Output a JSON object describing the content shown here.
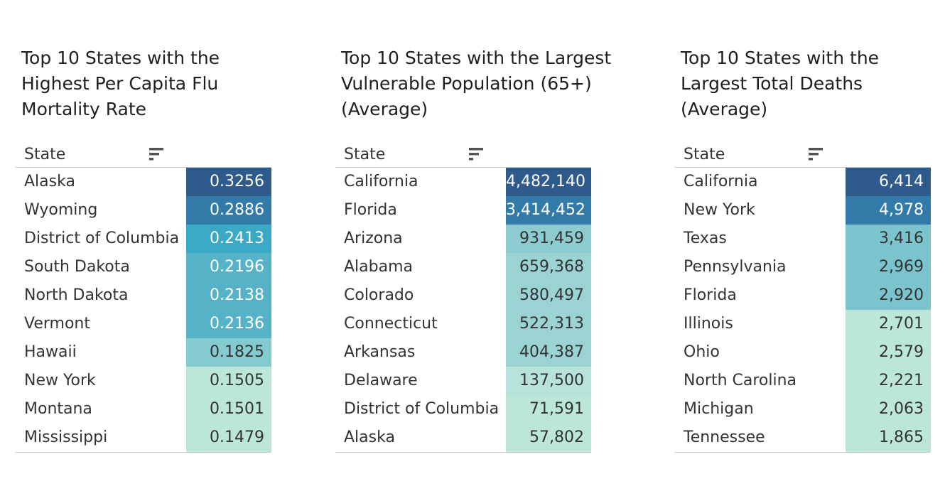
{
  "chart_data": [
    {
      "type": "table",
      "title": "Top 10 States with the\nHighest Per Capita Flu\nMortality Rate",
      "column_header": "State",
      "value_decimals": 4,
      "rows": [
        {
          "state": "Alaska",
          "value": 0.3256
        },
        {
          "state": "Wyoming",
          "value": 0.2886
        },
        {
          "state": "District of Columbia",
          "value": 0.2413
        },
        {
          "state": "South Dakota",
          "value": 0.2196
        },
        {
          "state": "North Dakota",
          "value": 0.2138
        },
        {
          "state": "Vermont",
          "value": 0.2136
        },
        {
          "state": "Hawaii",
          "value": 0.1825
        },
        {
          "state": "New York",
          "value": 0.1505
        },
        {
          "state": "Montana",
          "value": 0.1501
        },
        {
          "state": "Mississippi",
          "value": 0.1479
        }
      ],
      "cell_colors": [
        "#2e5a8c",
        "#327ba8",
        "#3aa9c6",
        "#56b3c7",
        "#56b3c7",
        "#56b3c7",
        "#84cbcf",
        "#bde6db",
        "#bde6db",
        "#bde6db"
      ]
    },
    {
      "type": "table",
      "title": "Top 10 States with the Largest\nVulnerable Population (65+)\n(Average)",
      "column_header": "State",
      "value_decimals": 0,
      "rows": [
        {
          "state": "California",
          "value": 4482140
        },
        {
          "state": "Florida",
          "value": 3414452
        },
        {
          "state": "Arizona",
          "value": 931459
        },
        {
          "state": "Alabama",
          "value": 659368
        },
        {
          "state": "Colorado",
          "value": 580497
        },
        {
          "state": "Connecticut",
          "value": 522313
        },
        {
          "state": "Arkansas",
          "value": 404387
        },
        {
          "state": "Delaware",
          "value": 137500
        },
        {
          "state": "District of Columbia",
          "value": 71591
        },
        {
          "state": "Alaska",
          "value": 57802
        }
      ],
      "cell_colors": [
        "#2e5a8c",
        "#327ba8",
        "#8ccbd0",
        "#9bd3d3",
        "#9bd3d3",
        "#9bd3d3",
        "#9bd3d3",
        "#b7e3da",
        "#bde6db",
        "#bde6db"
      ]
    },
    {
      "type": "table",
      "title": "Top 10 States with the\nLargest Total Deaths\n(Average)",
      "column_header": "State",
      "value_decimals": 0,
      "rows": [
        {
          "state": "California",
          "value": 6414
        },
        {
          "state": "New York",
          "value": 4978
        },
        {
          "state": "Texas",
          "value": 3416
        },
        {
          "state": "Pennsylvania",
          "value": 2969
        },
        {
          "state": "Florida",
          "value": 2920
        },
        {
          "state": "Illinois",
          "value": 2701
        },
        {
          "state": "Ohio",
          "value": 2579
        },
        {
          "state": "North Carolina",
          "value": 2221
        },
        {
          "state": "Michigan",
          "value": 2063
        },
        {
          "state": "Tennessee",
          "value": 1865
        }
      ],
      "cell_colors": [
        "#2e5a8c",
        "#327ba8",
        "#7cc4cd",
        "#7cc4cd",
        "#7cc4cd",
        "#bde6db",
        "#bde6db",
        "#bde6db",
        "#bde6db",
        "#bde6db"
      ]
    }
  ]
}
